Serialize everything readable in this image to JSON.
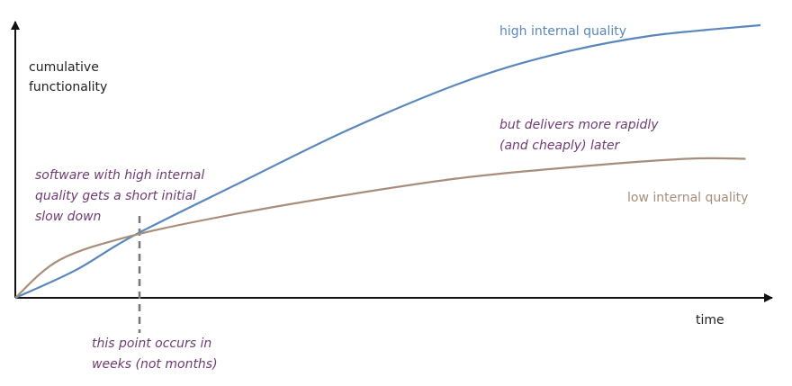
{
  "chart_data": {
    "type": "line",
    "xlabel": "time",
    "ylabel_lines": [
      "cumulative",
      "functionality"
    ],
    "axes": {
      "ticks": false,
      "grid": false
    },
    "series": [
      {
        "name": "high internal quality",
        "color": "#5a87bb",
        "trend": "slow start, then rapid growth that flattens at the end",
        "relative_points": [
          [
            0,
            0
          ],
          [
            0.08,
            0.1
          ],
          [
            0.16,
            0.23
          ],
          [
            0.3,
            0.42
          ],
          [
            0.45,
            0.62
          ],
          [
            0.6,
            0.79
          ],
          [
            0.72,
            0.89
          ],
          [
            0.85,
            0.96
          ],
          [
            1,
            1
          ]
        ]
      },
      {
        "name": "low internal quality",
        "color": "#a88d7a",
        "trend": "faster start, then slow growth",
        "relative_points": [
          [
            0,
            0
          ],
          [
            0.06,
            0.14
          ],
          [
            0.16,
            0.23
          ],
          [
            0.3,
            0.31
          ],
          [
            0.45,
            0.38
          ],
          [
            0.6,
            0.44
          ],
          [
            0.75,
            0.48
          ],
          [
            0.9,
            0.51
          ],
          [
            0.98,
            0.51
          ]
        ]
      }
    ],
    "crossover": {
      "x": 0.16,
      "y": 0.23,
      "marker": "dashed-vertical-line"
    }
  },
  "annotations": {
    "initial_slowdown": [
      "software with high internal",
      "quality gets a short initial",
      "slow down"
    ],
    "crossover_timing": [
      "this point occurs in",
      "weeks (not months)"
    ],
    "later_payoff": [
      "but delivers more rapidly",
      "(and cheaply) later"
    ]
  },
  "colors": {
    "axis": "#111111",
    "annotation_text": "#6e3b73",
    "crossover_line": "#777777"
  }
}
